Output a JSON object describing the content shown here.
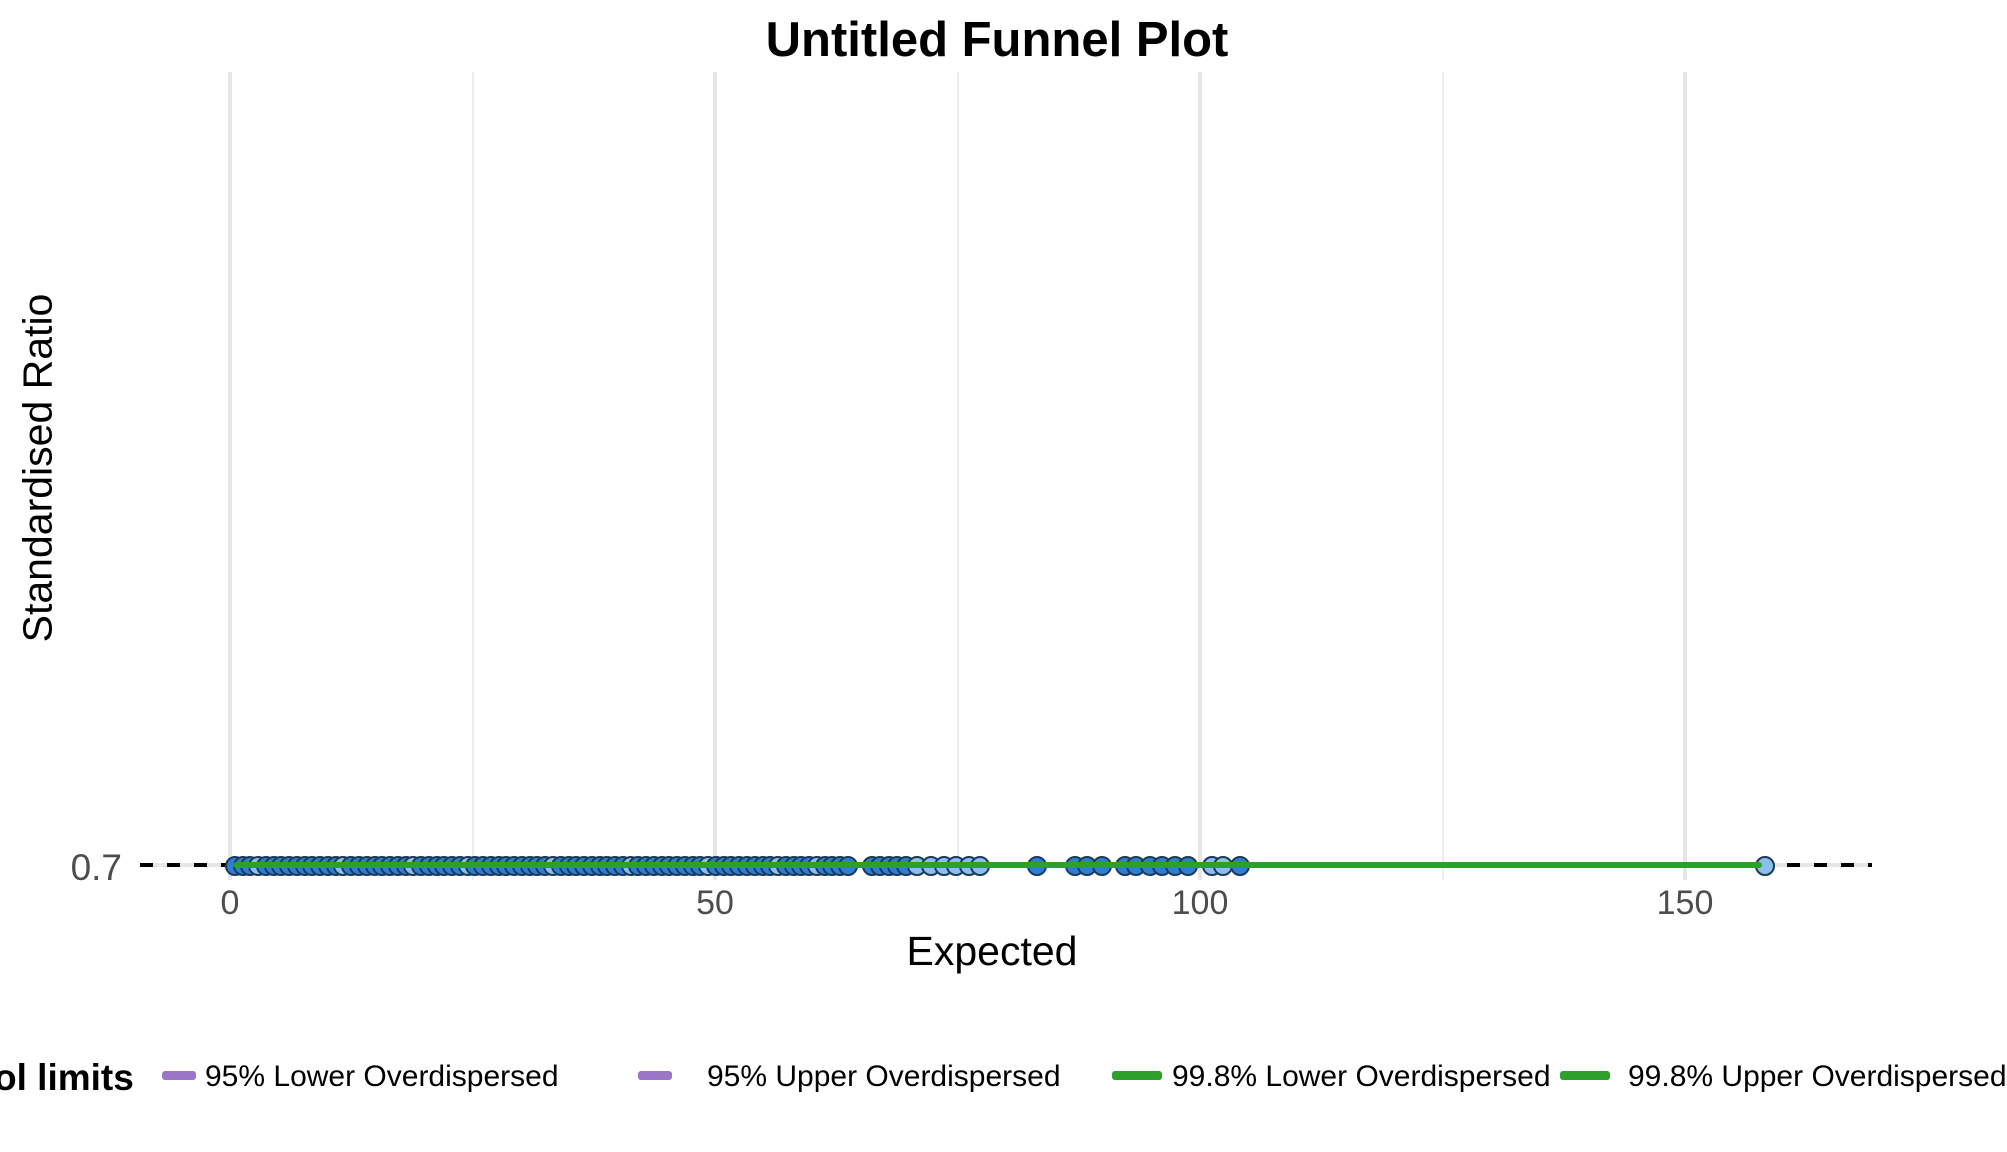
{
  "title": "Untitled Funnel Plot",
  "colors": {
    "point_fill": "#2e7fd2",
    "point_fill_light": "#8cc0ea",
    "point_border": "#1b3a5c",
    "limit_95": "#9c76c6",
    "limit_998": "#2da02c",
    "target_line": "#000000",
    "gridline_major": "#e6e6e6",
    "gridline_minor": "#ededed",
    "tick_text": "#4d4d4d"
  },
  "chart_data": {
    "type": "scatter",
    "title": "Untitled Funnel Plot",
    "xlabel": "Expected",
    "ylabel": "Standardised Ratio",
    "x_axis": {
      "tick_labels": [
        "0",
        "50",
        "100",
        "150"
      ],
      "major_ticks": [
        0,
        50,
        100,
        150
      ],
      "minor_gridlines": [
        25,
        75,
        125
      ],
      "visible_range": [
        -9,
        169
      ]
    },
    "y_axis": {
      "tick_labels": [
        "0.7"
      ],
      "ticks": [
        0.7
      ]
    },
    "grid": "vertical-only",
    "legend_position": "bottom",
    "target_line": {
      "y": 0.7,
      "style": "dashed",
      "color": "#000000",
      "x_extent": "full-width"
    },
    "limit_lines": [
      {
        "name": "95% Lower Overdispersed",
        "color": "#9c76c6",
        "style": "dashed",
        "y": 0.7,
        "x_start": 0.5,
        "x_end": 158.2,
        "visible": false
      },
      {
        "name": "95% Upper Overdispersed",
        "color": "#9c76c6",
        "style": "dashed",
        "y": 0.7,
        "x_start": 0.5,
        "x_end": 158.2,
        "visible": false
      },
      {
        "name": "99.8% Lower Overdispersed",
        "color": "#2da02c",
        "style": "solid",
        "y": 0.7,
        "x_start": 0.5,
        "x_end": 158.2,
        "visible": true
      },
      {
        "name": "99.8% Upper Overdispersed",
        "color": "#2da02c",
        "style": "solid",
        "y": 0.7,
        "x_start": 0.5,
        "x_end": 158.2,
        "visible": true
      }
    ],
    "points": {
      "y_value": 0.7,
      "x": [
        0.5,
        1.3,
        2.1,
        2.9,
        3.7,
        4.5,
        5.3,
        6.1,
        6.9,
        7.7,
        8.5,
        9.3,
        10.1,
        10.9,
        11.7,
        12.5,
        13.3,
        14.1,
        14.9,
        15.7,
        16.5,
        17.3,
        18.1,
        18.9,
        19.7,
        20.5,
        21.3,
        22.1,
        22.9,
        23.7,
        24.5,
        25.3,
        26.1,
        26.9,
        27.7,
        28.5,
        29.3,
        30.1,
        30.9,
        31.7,
        32.5,
        33.3,
        34.1,
        34.9,
        35.7,
        36.5,
        37.3,
        38.1,
        38.9,
        39.7,
        40.5,
        41.3,
        42.1,
        42.9,
        43.7,
        44.5,
        45.3,
        46.1,
        46.9,
        47.7,
        48.5,
        49.3,
        50.1,
        50.9,
        51.7,
        52.5,
        53.3,
        54.1,
        54.9,
        55.7,
        56.5,
        57.3,
        58.1,
        58.9,
        59.7,
        60.5,
        61.3,
        62.1,
        62.9,
        63.7,
        66.2,
        67.0,
        67.9,
        68.8,
        69.7,
        70.8,
        72.3,
        73.6,
        74.8,
        76.2,
        77.3,
        83.2,
        87.1,
        88.4,
        89.9,
        92.3,
        93.4,
        94.8,
        96.1,
        97.4,
        98.8,
        101.2,
        102.4,
        104.1,
        158.2
      ],
      "light_x": [
        2.9,
        11.7,
        18.9,
        24.5,
        33.3,
        41.3,
        49.3,
        56.5,
        60.5,
        70.8,
        72.3,
        73.6,
        74.8,
        76.2,
        77.3,
        101.2,
        102.4,
        158.2
      ]
    }
  },
  "axis": {
    "x_label": "Expected",
    "y_label": "Standardised Ratio",
    "y_tick": "0.7"
  },
  "legend": {
    "title": "ol limits",
    "items": [
      {
        "label": "95% Lower Overdispersed",
        "key_color": "#9c76c6",
        "key_type": "dash"
      },
      {
        "label": "95% Upper Overdispersed",
        "key_color": "#9c76c6",
        "key_type": "dash"
      },
      {
        "label": "99.8% Lower Overdispersed",
        "key_color": "#2da02c",
        "key_type": "line"
      },
      {
        "label": "99.8% Upper Overdispersed",
        "key_color": "#2da02c",
        "key_type": "line"
      }
    ]
  }
}
